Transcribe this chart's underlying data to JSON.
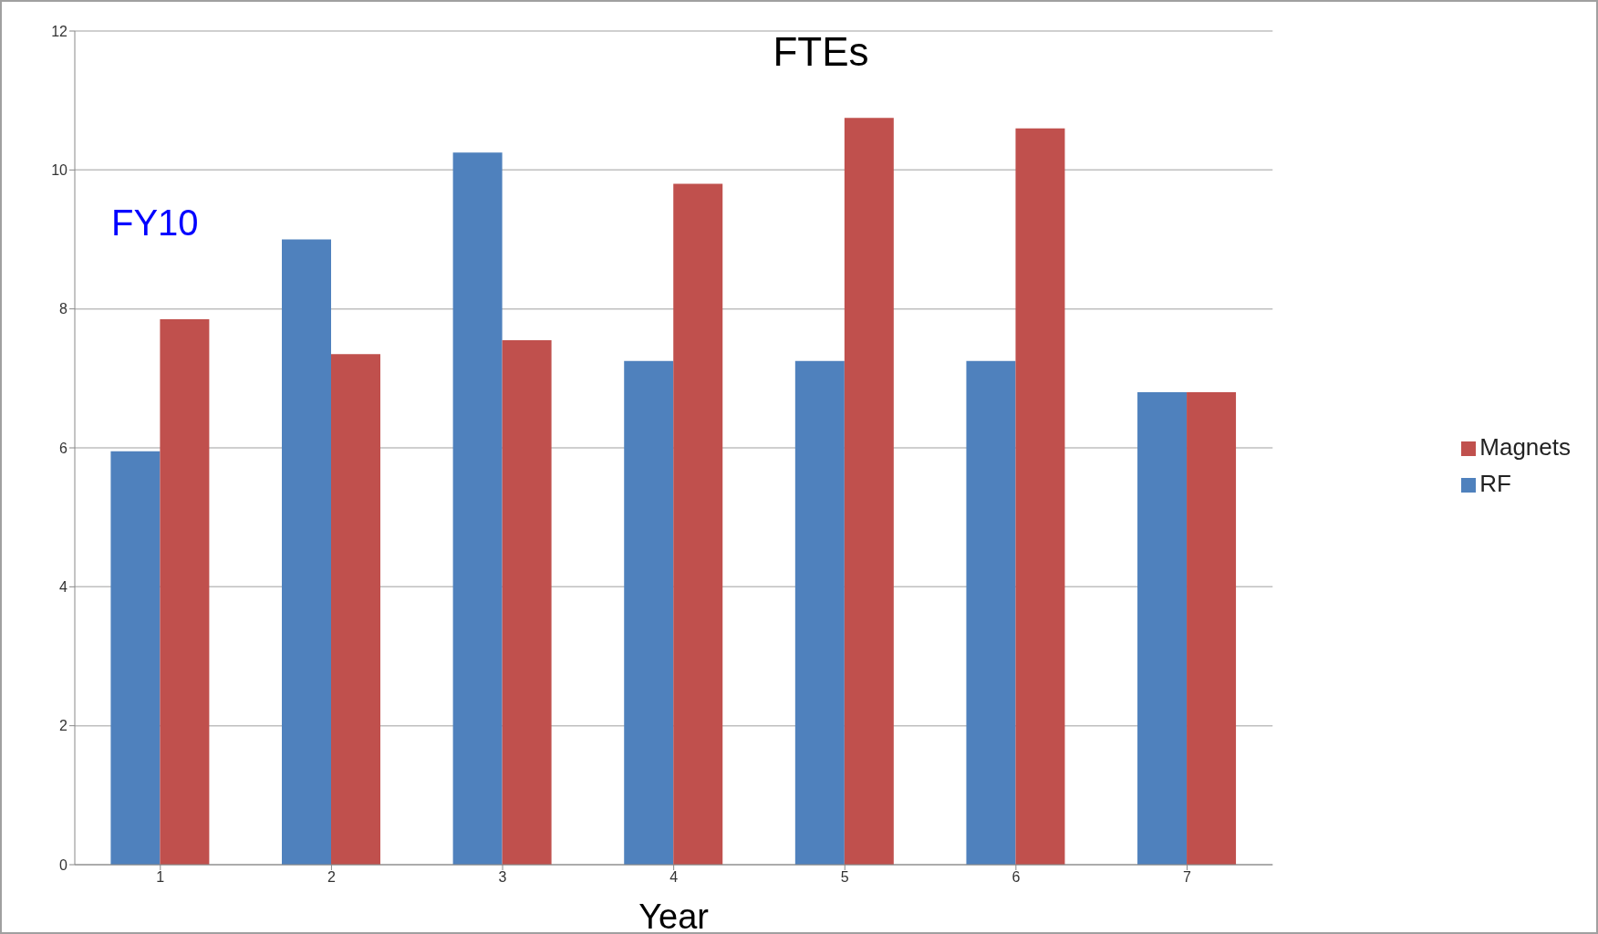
{
  "chart_data": {
    "type": "bar",
    "title": "FTEs",
    "xlabel": "Year",
    "categories": [
      "1",
      "2",
      "3",
      "4",
      "5",
      "6",
      "7"
    ],
    "series": [
      {
        "name": "RF",
        "color": "#4f81bd",
        "values": [
          5.95,
          9.0,
          10.25,
          7.25,
          7.25,
          7.25,
          6.8
        ]
      },
      {
        "name": "Magnets",
        "color": "#c0504d",
        "values": [
          7.85,
          7.35,
          7.55,
          9.8,
          10.75,
          10.6,
          6.8
        ]
      }
    ],
    "ylim": [
      0,
      12
    ],
    "yticks": [
      0,
      2,
      4,
      6,
      8,
      10,
      12
    ],
    "grid": "y",
    "legend": "right",
    "annotations": [
      "FY10"
    ]
  }
}
